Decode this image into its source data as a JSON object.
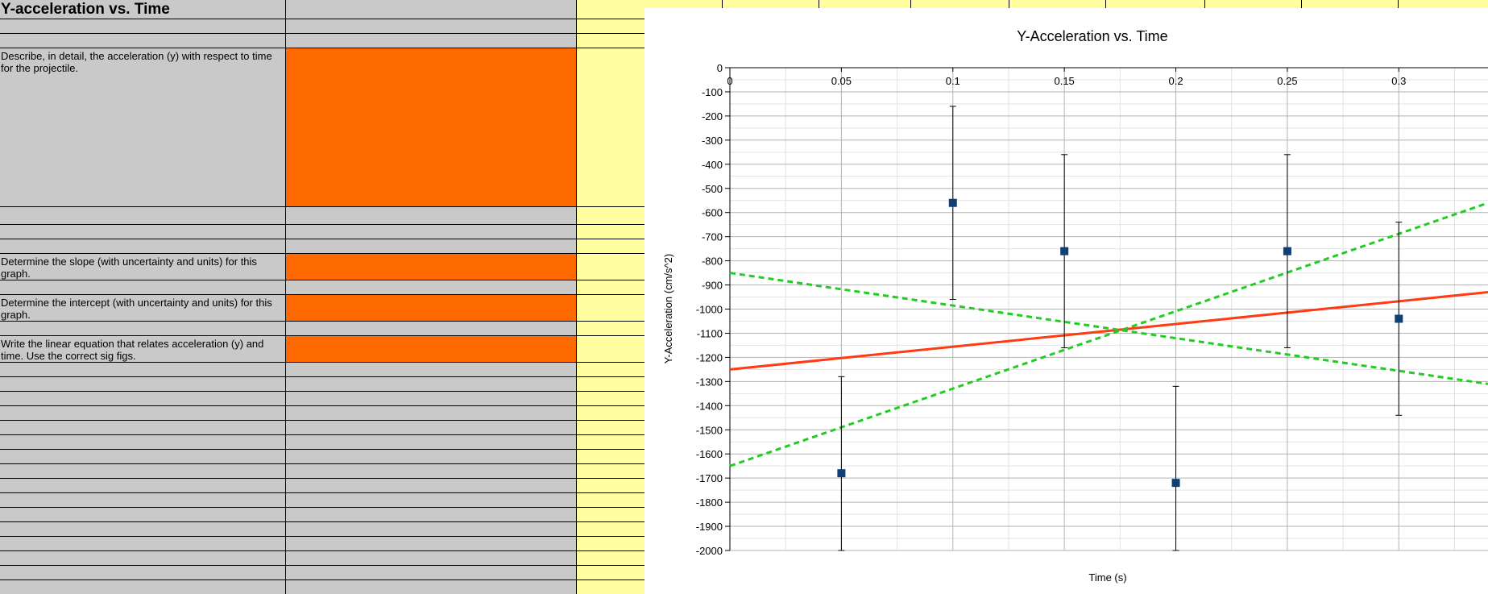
{
  "sheet": {
    "heading": "Y-acceleration vs. Time",
    "prompts": {
      "describe": "Describe, in detail, the acceleration (y) with respect to time for the projectile.",
      "slope": "Determine the slope (with uncertainty and units) for this graph.",
      "intercept": "Determine the intercept (with uncertainty and units) for this graph.",
      "equation": "Write the linear equation that relates acceleration (y) and time. Use the correct sig figs."
    },
    "colors": {
      "gray": "#c9c9c9",
      "orange": "#ff6a00",
      "yellow": "#ffff9f"
    }
  },
  "chart_data": {
    "type": "scatter",
    "title": "Y-Acceleration vs. Time",
    "xlabel": "Time (s)",
    "ylabel": "Y-Acceleration (cm/s^2)",
    "xlim": [
      0,
      0.34
    ],
    "ylim": [
      -2000,
      0
    ],
    "x_ticks": [
      "0",
      "0.05",
      "0.1",
      "0.15",
      "0.2",
      "0.25",
      "0.3"
    ],
    "y_ticks": [
      "0",
      "-100",
      "-200",
      "-300",
      "-400",
      "-500",
      "-600",
      "-700",
      "-800",
      "-900",
      "-1000",
      "-1100",
      "-1200",
      "-1300",
      "-1400",
      "-1500",
      "-1600",
      "-1700",
      "-1800",
      "-1900",
      "-2000"
    ],
    "grid": true,
    "points": [
      {
        "x": 0.05,
        "y": -1680,
        "err_low": -2000,
        "err_high": -1280
      },
      {
        "x": 0.1,
        "y": -560,
        "err_low": -960,
        "err_high": -160
      },
      {
        "x": 0.15,
        "y": -760,
        "err_low": -1160,
        "err_high": -360
      },
      {
        "x": 0.2,
        "y": -1720,
        "err_low": -2000,
        "err_high": -1320
      },
      {
        "x": 0.25,
        "y": -760,
        "err_low": -1160,
        "err_high": -360
      },
      {
        "x": 0.3,
        "y": -1040,
        "err_low": -1440,
        "err_high": -640
      }
    ],
    "lines": [
      {
        "style": "solid",
        "color": "#ff3b14",
        "x": [
          0,
          0.34
        ],
        "y": [
          -1250,
          -930
        ]
      },
      {
        "style": "dashed",
        "color": "#22cc22",
        "x": [
          0,
          0.34
        ],
        "y": [
          -850,
          -1310
        ]
      },
      {
        "style": "dashed",
        "color": "#22cc22",
        "x": [
          0,
          0.34
        ],
        "y": [
          -1650,
          -560
        ]
      }
    ],
    "marker_color": "#0f3f75"
  }
}
